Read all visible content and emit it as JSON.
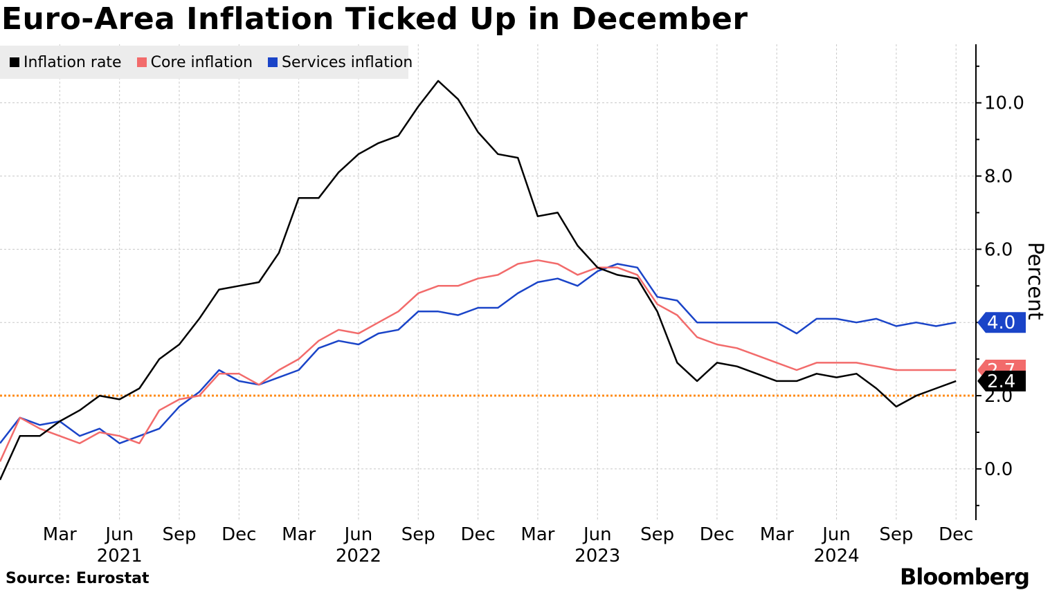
{
  "title": "Euro-Area Inflation Ticked Up in December",
  "source": "Source: Eurostat",
  "brand": "Bloomberg",
  "colors": {
    "inflation": "#000000",
    "core": "#f26b6b",
    "services": "#1a44c8",
    "target": "#ff8c1a"
  },
  "chart_data": {
    "type": "line",
    "title": "Euro-Area Inflation Ticked Up in December",
    "ylabel": "Percent",
    "ylim": [
      -1.4,
      11.6
    ],
    "yticks": [
      0.0,
      2.0,
      4.0,
      6.0,
      8.0,
      10.0
    ],
    "ytick_labels": [
      "0.0",
      "2.0",
      "4.0",
      "6.0",
      "8.0",
      "10.0"
    ],
    "xlim": [
      "2020-12",
      "2025-01"
    ],
    "x": [
      "2020-12",
      "2021-01",
      "2021-02",
      "2021-03",
      "2021-04",
      "2021-05",
      "2021-06",
      "2021-07",
      "2021-08",
      "2021-09",
      "2021-10",
      "2021-11",
      "2021-12",
      "2022-01",
      "2022-02",
      "2022-03",
      "2022-04",
      "2022-05",
      "2022-06",
      "2022-07",
      "2022-08",
      "2022-09",
      "2022-10",
      "2022-11",
      "2022-12",
      "2023-01",
      "2023-02",
      "2023-03",
      "2023-04",
      "2023-05",
      "2023-06",
      "2023-07",
      "2023-08",
      "2023-09",
      "2023-10",
      "2023-11",
      "2023-12",
      "2024-01",
      "2024-02",
      "2024-03",
      "2024-04",
      "2024-05",
      "2024-06",
      "2024-07",
      "2024-08",
      "2024-09",
      "2024-10",
      "2024-11",
      "2024-12"
    ],
    "x_tick_months": [
      "2021-03",
      "2021-06",
      "2021-09",
      "2021-12",
      "2022-03",
      "2022-06",
      "2022-09",
      "2022-12",
      "2023-03",
      "2023-06",
      "2023-09",
      "2023-12",
      "2024-03",
      "2024-06",
      "2024-09",
      "2024-12"
    ],
    "x_tick_labels": [
      "Mar",
      "Jun",
      "Sep",
      "Dec",
      "Mar",
      "Jun",
      "Sep",
      "Dec",
      "Mar",
      "Jun",
      "Sep",
      "Dec",
      "Mar",
      "Jun",
      "Sep",
      "Dec"
    ],
    "x_year_months": [
      "2021-06",
      "2022-06",
      "2023-06",
      "2024-06"
    ],
    "x_year_labels": [
      "2021",
      "2022",
      "2023",
      "2024"
    ],
    "series": [
      {
        "name": "Inflation rate",
        "key": "inflation",
        "values": [
          -0.3,
          0.9,
          0.9,
          1.3,
          1.6,
          2.0,
          1.9,
          2.2,
          3.0,
          3.4,
          4.1,
          4.9,
          5.0,
          5.1,
          5.9,
          7.4,
          7.4,
          8.1,
          8.6,
          8.9,
          9.1,
          9.9,
          10.6,
          10.1,
          9.2,
          8.6,
          8.5,
          6.9,
          7.0,
          6.1,
          5.5,
          5.3,
          5.2,
          4.3,
          2.9,
          2.4,
          2.9,
          2.8,
          2.6,
          2.4,
          2.4,
          2.6,
          2.5,
          2.6,
          2.2,
          1.7,
          2.0,
          2.2,
          2.4
        ]
      },
      {
        "name": "Core inflation",
        "key": "core",
        "values": [
          0.2,
          1.4,
          1.1,
          0.9,
          0.7,
          1.0,
          0.9,
          0.7,
          1.6,
          1.9,
          2.0,
          2.6,
          2.6,
          2.3,
          2.7,
          3.0,
          3.5,
          3.8,
          3.7,
          4.0,
          4.3,
          4.8,
          5.0,
          5.0,
          5.2,
          5.3,
          5.6,
          5.7,
          5.6,
          5.3,
          5.5,
          5.5,
          5.3,
          4.5,
          4.2,
          3.6,
          3.4,
          3.3,
          3.1,
          2.9,
          2.7,
          2.9,
          2.9,
          2.9,
          2.8,
          2.7,
          2.7,
          2.7,
          2.7
        ]
      },
      {
        "name": "Services inflation",
        "key": "services",
        "values": [
          0.7,
          1.4,
          1.2,
          1.3,
          0.9,
          1.1,
          0.7,
          0.9,
          1.1,
          1.7,
          2.1,
          2.7,
          2.4,
          2.3,
          2.5,
          2.7,
          3.3,
          3.5,
          3.4,
          3.7,
          3.8,
          4.3,
          4.3,
          4.2,
          4.4,
          4.4,
          4.8,
          5.1,
          5.2,
          5.0,
          5.4,
          5.6,
          5.5,
          4.7,
          4.6,
          4.0,
          4.0,
          4.0,
          4.0,
          4.0,
          3.7,
          4.1,
          4.1,
          4.0,
          4.1,
          3.9,
          4.0,
          3.9,
          4.0
        ]
      }
    ],
    "reference_line": {
      "value": 2.0,
      "style": "dotted"
    },
    "end_labels": [
      {
        "key": "services",
        "text": "4.0",
        "value": 4.0
      },
      {
        "key": "core",
        "text": "2.7",
        "value": 2.7
      },
      {
        "key": "inflation",
        "text": "2.4",
        "value": 2.4
      }
    ],
    "legend": [
      "Inflation rate",
      "Core inflation",
      "Services inflation"
    ],
    "legend_position": "top-left",
    "grid": true
  }
}
